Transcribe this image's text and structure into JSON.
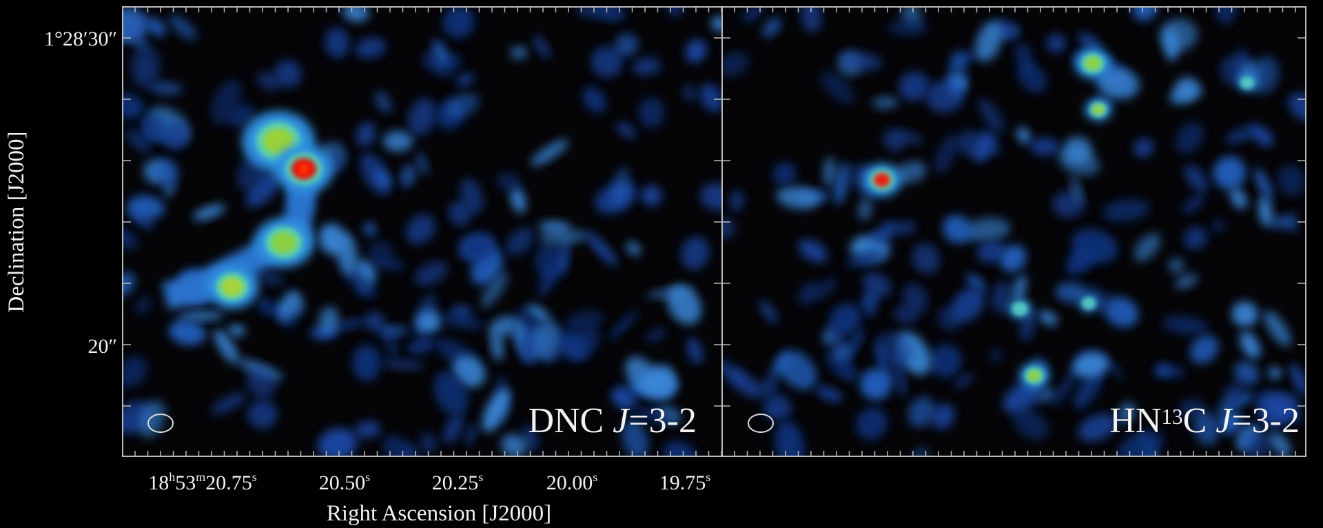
{
  "figure": {
    "y_axis": {
      "label": "Declination [J2000]",
      "ticks": [
        [
          {
            "text": "1°28′30″"
          }
        ],
        [
          {
            "text": "20″"
          }
        ]
      ]
    },
    "x_axis": {
      "label": "Right Ascension [J2000]",
      "ticks": [
        [
          {
            "text": "18"
          },
          {
            "text": "h",
            "sup": true
          },
          {
            "text": "53"
          },
          {
            "text": "m",
            "sup": true
          },
          {
            "text": "20.75"
          },
          {
            "text": "s",
            "sup": true
          }
        ],
        [
          {
            "text": "20.50"
          },
          {
            "text": "s",
            "sup": true
          }
        ],
        [
          {
            "text": "20.25"
          },
          {
            "text": "s",
            "sup": true
          }
        ],
        [
          {
            "text": "20.00"
          },
          {
            "text": "s",
            "sup": true
          }
        ],
        [
          {
            "text": "19.75"
          },
          {
            "text": "s",
            "sup": true
          }
        ]
      ]
    },
    "panels": [
      {
        "label": [
          {
            "text": "DNC "
          },
          {
            "text": "J",
            "italic": true
          },
          {
            "text": "=3-2"
          }
        ]
      },
      {
        "label": [
          {
            "text": "HN"
          },
          {
            "text": "13",
            "sup": true
          },
          {
            "text": "C "
          },
          {
            "text": "J",
            "italic": true
          },
          {
            "text": "=3-2"
          }
        ]
      }
    ]
  }
}
